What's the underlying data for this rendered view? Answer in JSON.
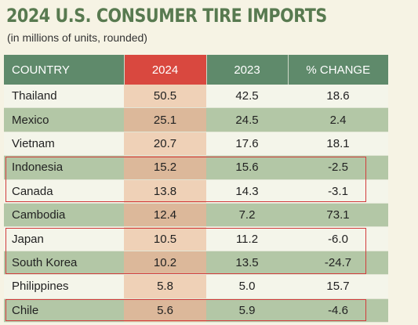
{
  "title": "2024 U.S. CONSUMER TIRE IMPORTS",
  "subtitle": "(in millions of units, rounded)",
  "chart_data": {
    "type": "table",
    "columns": [
      "COUNTRY",
      "2024",
      "2023",
      "% CHANGE"
    ],
    "rows": [
      {
        "country": "Thailand",
        "y2024": "50.5",
        "y2023": "42.5",
        "change": "18.6"
      },
      {
        "country": "Mexico",
        "y2024": "25.1",
        "y2023": "24.5",
        "change": "2.4"
      },
      {
        "country": "Vietnam",
        "y2024": "20.7",
        "y2023": "17.6",
        "change": "18.1"
      },
      {
        "country": "Indonesia",
        "y2024": "15.2",
        "y2023": "15.6",
        "change": "-2.5"
      },
      {
        "country": "Canada",
        "y2024": "13.8",
        "y2023": "14.3",
        "change": "-3.1"
      },
      {
        "country": "Cambodia",
        "y2024": "12.4",
        "y2023": "7.2",
        "change": "73.1"
      },
      {
        "country": "Japan",
        "y2024": "10.5",
        "y2023": "11.2",
        "change": "-6.0"
      },
      {
        "country": "South Korea",
        "y2024": "10.2",
        "y2023": "13.5",
        "change": "-24.7"
      },
      {
        "country": "Philippines",
        "y2024": "5.8",
        "y2023": "5.0",
        "change": "15.7"
      },
      {
        "country": "Chile",
        "y2024": "5.6",
        "y2023": "5.9",
        "change": "-4.6"
      }
    ],
    "highlighted_rows": [
      "Indonesia",
      "Canada",
      "Japan",
      "South Korea",
      "Chile"
    ]
  },
  "colors": {
    "title": "#587a50",
    "header": "#5f8a6b",
    "header_2024": "#d9483f",
    "row_band": "#b3c7a6",
    "highlight_box": "#d23c3c"
  }
}
